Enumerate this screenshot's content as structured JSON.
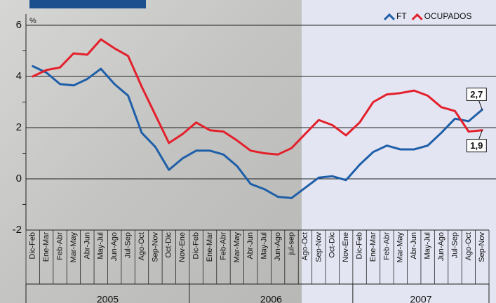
{
  "chart_data": {
    "type": "line",
    "y_label": "%",
    "categories": [
      "Dic-Feb",
      "Ene-Mar",
      "Feb-Abr",
      "Mar-May",
      "Abr-Jun",
      "May-Jul",
      "Jun-Ago",
      "Jul-Sep",
      "Ago-Oct",
      "Sep-Nov",
      "Oct-Dic",
      "Nov-Ene",
      "Dic-Feb",
      "Ene-Mar",
      "Feb-Abr",
      "Mar-May",
      "Abr-Jun",
      "May-Jul",
      "Jun-Ago",
      "jul-sep",
      "Ago-Oct",
      "Sep-Nov",
      "Oct-Dic",
      "Nov-Ene",
      "Dic-Feb",
      "Ene-Mar",
      "Feb-Abr",
      "Mar-May",
      "Abr-Jun",
      "May-Jul",
      "Jun-Ago",
      "Jul-Sep",
      "Ago-Oct",
      "Sep-Nov"
    ],
    "year_groups": [
      "2005",
      "2006",
      "2007"
    ],
    "series": [
      {
        "name": "FT",
        "color": "#1f5fa8",
        "values": [
          4.4,
          4.15,
          3.7,
          3.65,
          3.9,
          4.3,
          3.7,
          3.25,
          1.8,
          1.25,
          0.35,
          0.8,
          1.1,
          1.1,
          0.95,
          0.5,
          -0.2,
          -0.4,
          -0.7,
          -0.75,
          -0.35,
          0.05,
          0.1,
          -0.05,
          0.55,
          1.05,
          1.3,
          1.15,
          1.15,
          1.3,
          1.8,
          2.35,
          2.25,
          2.7
        ],
        "value_labels": [
          null,
          null,
          null,
          null,
          null,
          null,
          null,
          null,
          null,
          null,
          null,
          null,
          null,
          null,
          null,
          null,
          null,
          null,
          null,
          null,
          null,
          null,
          null,
          null,
          null,
          null,
          null,
          null,
          null,
          null,
          null,
          null,
          null,
          "2,7"
        ]
      },
      {
        "name": "OCUPADOS",
        "color": "#e3202b",
        "values": [
          4.0,
          4.25,
          4.35,
          4.9,
          4.85,
          5.45,
          5.1,
          4.8,
          3.6,
          2.5,
          1.4,
          1.75,
          2.2,
          1.9,
          1.85,
          1.5,
          1.1,
          1.0,
          0.95,
          1.2,
          1.75,
          2.3,
          2.1,
          1.7,
          2.2,
          3.0,
          3.3,
          3.35,
          3.45,
          3.25,
          2.8,
          2.65,
          1.85,
          1.9
        ],
        "value_labels": [
          null,
          null,
          null,
          null,
          null,
          null,
          null,
          null,
          null,
          null,
          null,
          null,
          null,
          null,
          null,
          null,
          null,
          null,
          null,
          null,
          null,
          null,
          null,
          null,
          null,
          null,
          null,
          null,
          null,
          null,
          null,
          null,
          null,
          "1,9"
        ]
      }
    ],
    "ylim": [
      -2,
      6
    ],
    "yticks": [
      -2,
      0,
      2,
      4,
      6
    ],
    "grid": true,
    "legend": "top-right"
  }
}
